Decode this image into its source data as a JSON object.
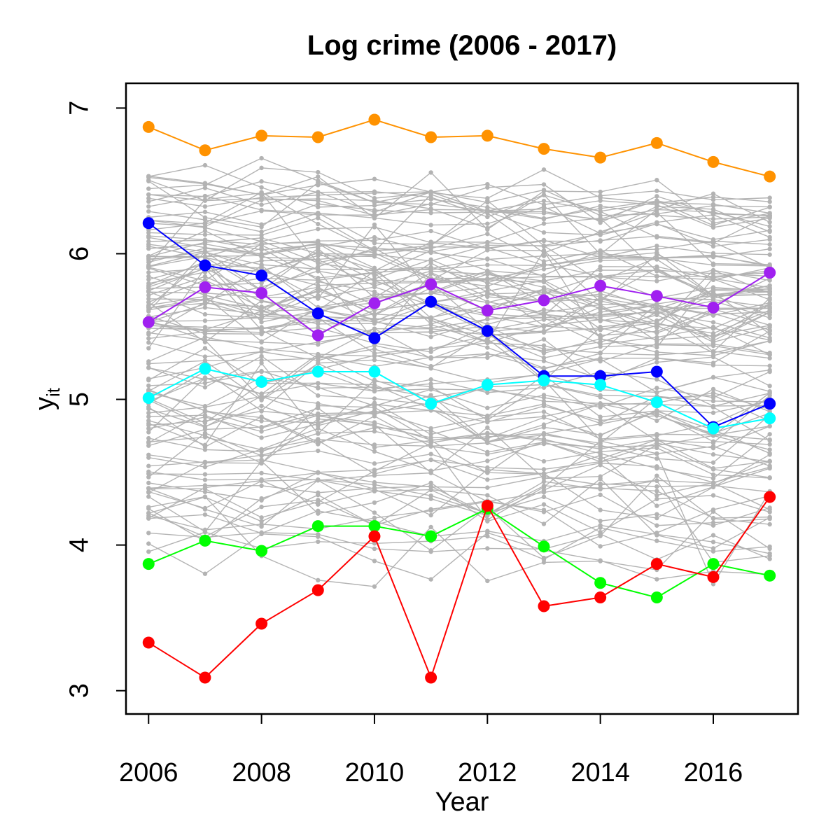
{
  "chart_data": {
    "type": "line",
    "title": "Log crime (2006 - 2017)",
    "xlabel": "Year",
    "ylabel_main": "y",
    "ylabel_sub": "it",
    "xlim": [
      2005.6,
      2017.5
    ],
    "ylim": [
      2.84,
      7.17
    ],
    "x": [
      2006,
      2007,
      2008,
      2009,
      2010,
      2011,
      2012,
      2013,
      2014,
      2015,
      2016,
      2017
    ],
    "x_ticks": [
      "2006",
      "2008",
      "2010",
      "2012",
      "2014",
      "2016"
    ],
    "x_tick_values": [
      2006,
      2008,
      2010,
      2012,
      2014,
      2016
    ],
    "y_ticks": [
      "3",
      "4",
      "5",
      "6",
      "7"
    ],
    "y_tick_values": [
      3,
      4,
      5,
      6,
      7
    ],
    "grid": false,
    "background_color": "#b3b3b3",
    "background_series_count": 120,
    "highlighted_series": [
      {
        "color": "#ff9200",
        "values": [
          6.87,
          6.71,
          6.81,
          6.8,
          6.92,
          6.8,
          6.81,
          6.72,
          6.66,
          6.76,
          6.63,
          6.53
        ]
      },
      {
        "color": "#0000ff",
        "values": [
          6.21,
          5.92,
          5.85,
          5.59,
          5.42,
          5.67,
          5.47,
          5.16,
          5.16,
          5.19,
          4.81,
          4.97
        ]
      },
      {
        "color": "#a020f0",
        "values": [
          5.53,
          5.77,
          5.73,
          5.44,
          5.66,
          5.79,
          5.61,
          5.68,
          5.78,
          5.71,
          5.63,
          5.87
        ]
      },
      {
        "color": "#00ffff",
        "values": [
          5.01,
          5.21,
          5.12,
          5.19,
          5.19,
          4.97,
          5.1,
          5.13,
          5.1,
          4.98,
          4.8,
          4.87
        ]
      },
      {
        "color": "#00ff00",
        "values": [
          3.87,
          4.03,
          3.96,
          4.13,
          4.13,
          4.06,
          4.25,
          3.99,
          3.74,
          3.64,
          3.87,
          3.79
        ]
      },
      {
        "color": "#ff0000",
        "values": [
          3.33,
          3.09,
          3.46,
          3.69,
          4.06,
          3.09,
          4.27,
          3.58,
          3.64,
          3.87,
          3.78,
          4.33
        ]
      }
    ]
  }
}
